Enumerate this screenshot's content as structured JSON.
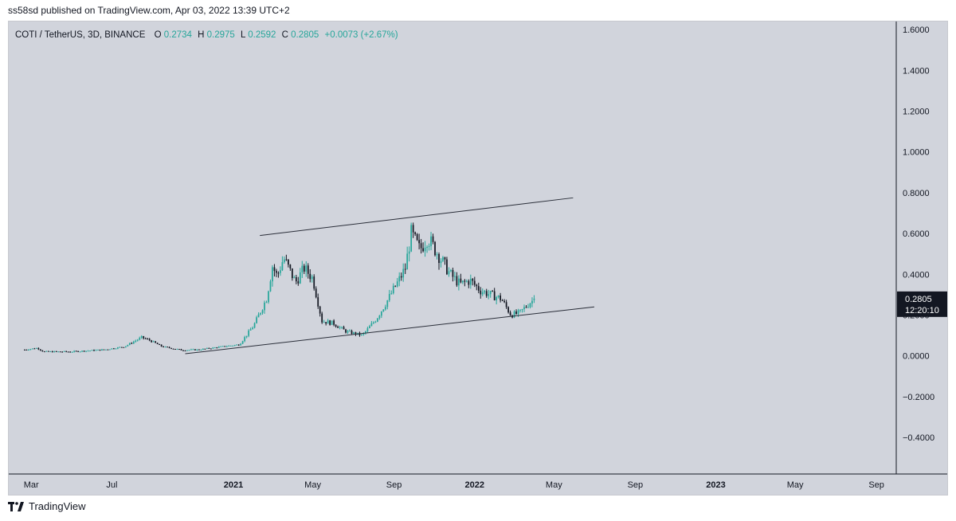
{
  "header": {
    "published_line": "ss58sd published on TradingView.com, Apr 03, 2022 13:39 UTC+2"
  },
  "legend": {
    "symbol": "COTI / TetherUS, 3D, BINANCE",
    "o_label": "O",
    "o_value": "0.2734",
    "h_label": "H",
    "h_value": "0.2975",
    "l_label": "L",
    "l_value": "0.2592",
    "c_label": "C",
    "c_value": "0.2805",
    "change": "+0.0073 (+2.67%)"
  },
  "price_tag": {
    "price": "0.2805",
    "countdown": "12:20:10"
  },
  "footer": {
    "brand": "TradingView"
  },
  "colors": {
    "background": "#d1d4dc",
    "up": "#26a69a",
    "down": "#131722",
    "trendline": "#2a2e39",
    "axis_text": "#131722",
    "price_tag_bg": "#131722"
  },
  "chart_data": {
    "type": "candlestick",
    "yaxis_ticks": [
      "1.6000",
      "1.4000",
      "1.2000",
      "1.0000",
      "0.8000",
      "0.6000",
      "0.4000",
      "0.2000",
      "0.0000",
      "−0.2000",
      "−0.4000"
    ],
    "ylim": [
      -0.58,
      1.64
    ],
    "xaxis_ticks": [
      {
        "label": "Mar",
        "date": "2020-03-01",
        "bold": false
      },
      {
        "label": "Jul",
        "date": "2020-07-01",
        "bold": false
      },
      {
        "label": "2021",
        "date": "2021-01-01",
        "bold": true
      },
      {
        "label": "May",
        "date": "2021-05-01",
        "bold": false
      },
      {
        "label": "Sep",
        "date": "2021-09-01",
        "bold": false
      },
      {
        "label": "2022",
        "date": "2022-01-01",
        "bold": true
      },
      {
        "label": "May",
        "date": "2022-05-01",
        "bold": false
      },
      {
        "label": "Sep",
        "date": "2022-09-01",
        "bold": false
      },
      {
        "label": "2023",
        "date": "2023-01-01",
        "bold": true
      },
      {
        "label": "May",
        "date": "2023-05-01",
        "bold": false
      },
      {
        "label": "Sep",
        "date": "2023-09-01",
        "bold": false
      }
    ],
    "xlim": [
      "2020-01-27",
      "2023-10-01"
    ],
    "price_path": [
      [
        "2020-02-20",
        0.03
      ],
      [
        "2020-03-10",
        0.038
      ],
      [
        "2020-03-20",
        0.02
      ],
      [
        "2020-05-01",
        0.02
      ],
      [
        "2020-06-20",
        0.03
      ],
      [
        "2020-07-20",
        0.045
      ],
      [
        "2020-08-15",
        0.09
      ],
      [
        "2020-08-28",
        0.075
      ],
      [
        "2020-09-15",
        0.045
      ],
      [
        "2020-10-15",
        0.028
      ],
      [
        "2020-11-10",
        0.03
      ],
      [
        "2020-12-15",
        0.045
      ],
      [
        "2021-01-10",
        0.055
      ],
      [
        "2021-02-01",
        0.15
      ],
      [
        "2021-02-20",
        0.28
      ],
      [
        "2021-03-01",
        0.44
      ],
      [
        "2021-03-08",
        0.39
      ],
      [
        "2021-03-18",
        0.48
      ],
      [
        "2021-04-05",
        0.36
      ],
      [
        "2021-04-18",
        0.43
      ],
      [
        "2021-05-01",
        0.38
      ],
      [
        "2021-05-15",
        0.17
      ],
      [
        "2021-06-01",
        0.16
      ],
      [
        "2021-06-20",
        0.12
      ],
      [
        "2021-07-15",
        0.1
      ],
      [
        "2021-08-05",
        0.18
      ],
      [
        "2021-08-20",
        0.26
      ],
      [
        "2021-09-01",
        0.33
      ],
      [
        "2021-09-10",
        0.38
      ],
      [
        "2021-09-18",
        0.43
      ],
      [
        "2021-09-27",
        0.6
      ],
      [
        "2021-10-10",
        0.52
      ],
      [
        "2021-10-22",
        0.58
      ],
      [
        "2021-11-10",
        0.48
      ],
      [
        "2021-11-25",
        0.4
      ],
      [
        "2021-12-10",
        0.35
      ],
      [
        "2021-12-25",
        0.37
      ],
      [
        "2022-01-10",
        0.32
      ],
      [
        "2022-01-25",
        0.3
      ],
      [
        "2022-02-10",
        0.28
      ],
      [
        "2022-02-25",
        0.2
      ],
      [
        "2022-03-10",
        0.21
      ],
      [
        "2022-03-25",
        0.26
      ],
      [
        "2022-04-03",
        0.2805
      ]
    ],
    "trendlines": [
      {
        "from": [
          "2021-02-10",
          0.59
        ],
        "to": [
          "2022-05-30",
          0.775
        ]
      },
      {
        "from": [
          "2020-10-20",
          0.01
        ],
        "to": [
          "2022-07-01",
          0.24
        ]
      }
    ],
    "last": {
      "o": 0.2734,
      "h": 0.2975,
      "l": 0.2592,
      "c": 0.2805
    }
  }
}
